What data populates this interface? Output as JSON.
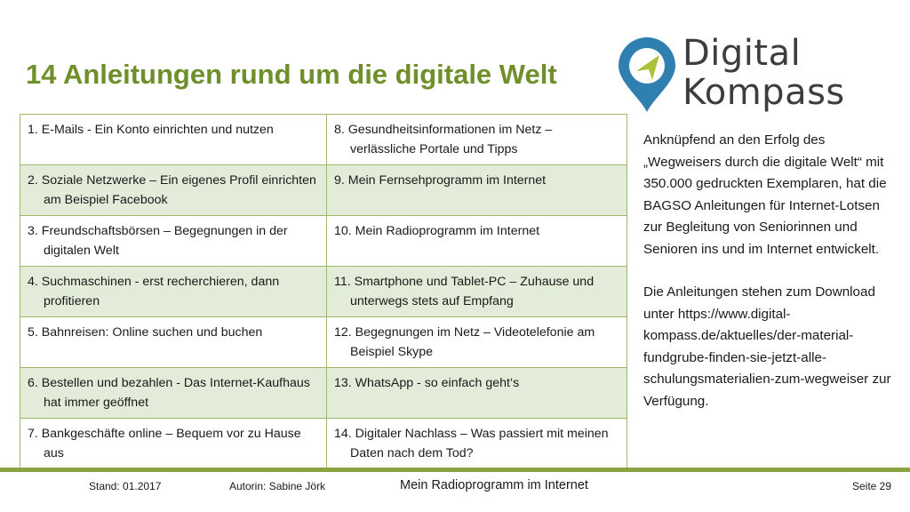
{
  "slide": {
    "title": "14 Anleitungen rund um die digitale Welt"
  },
  "logo": {
    "line1": "Digital",
    "line2": "Kompass",
    "colors": {
      "pin_blue": "#2f7fb0",
      "pin_arrow": "#a9c23a",
      "text": "#3d3d3d"
    }
  },
  "table": {
    "rows": [
      {
        "left": "1. E-Mails - Ein Konto einrichten und nutzen",
        "right": "8. Gesundheitsinformationen im Netz – verlässliche Portale und Tipps"
      },
      {
        "left": "2. Soziale Netzwerke – Ein eigenes Profil einrichten am Beispiel Facebook",
        "right": "9. Mein Fernsehprogramm im Internet"
      },
      {
        "left": "3. Freundschaftsbörsen – Begegnungen in der digitalen Welt",
        "right": "10. Mein Radioprogramm im Internet"
      },
      {
        "left": "4. Suchmaschinen - erst recherchieren, dann profitieren",
        "right": "11. Smartphone und Tablet-PC – Zuhause und unterwegs stets auf Empfang"
      },
      {
        "left": "5. Bahnreisen: Online suchen und buchen",
        "right": "12. Begegnungen im Netz – Videotelefonie am Beispiel Skype"
      },
      {
        "left": "6. Bestellen und bezahlen - Das Internet-Kaufhaus hat immer geöffnet",
        "right": "13. WhatsApp - so einfach geht‘s"
      },
      {
        "left": "7. Bankgeschäfte online – Bequem vor zu Hause aus",
        "right": "14. Digitaler Nachlass – Was passiert mit meinen Daten nach dem Tod?"
      }
    ]
  },
  "sidebar": {
    "paragraph1": "Anknüpfend an den Erfolg des „Wegweisers durch die digitale Welt“ mit 350.000 gedruckten Exemplaren, hat die BAGSO Anleitungen für Internet-Lotsen zur Begleitung von Seniorinnen und Senioren ins und im Internet entwickelt.",
    "paragraph2": "Die Anleitungen stehen zum Download unter https://www.digital-kompass.de/aktuelles/der-material-fundgrube-finden-sie-jetzt-alle-schulungsmaterialien-zum-wegweiser zur Verfügung."
  },
  "footer": {
    "stand": "Stand: 01.2017",
    "author": "Autorin: Sabine Jörk",
    "topic": "Mein Radioprogramm im Internet",
    "page": "Seite 29",
    "bar_color": "#8ca13f"
  },
  "colors": {
    "title": "#6f8f2a",
    "table_border": "#9fb86a",
    "row_alt": "#e3ecd9"
  }
}
